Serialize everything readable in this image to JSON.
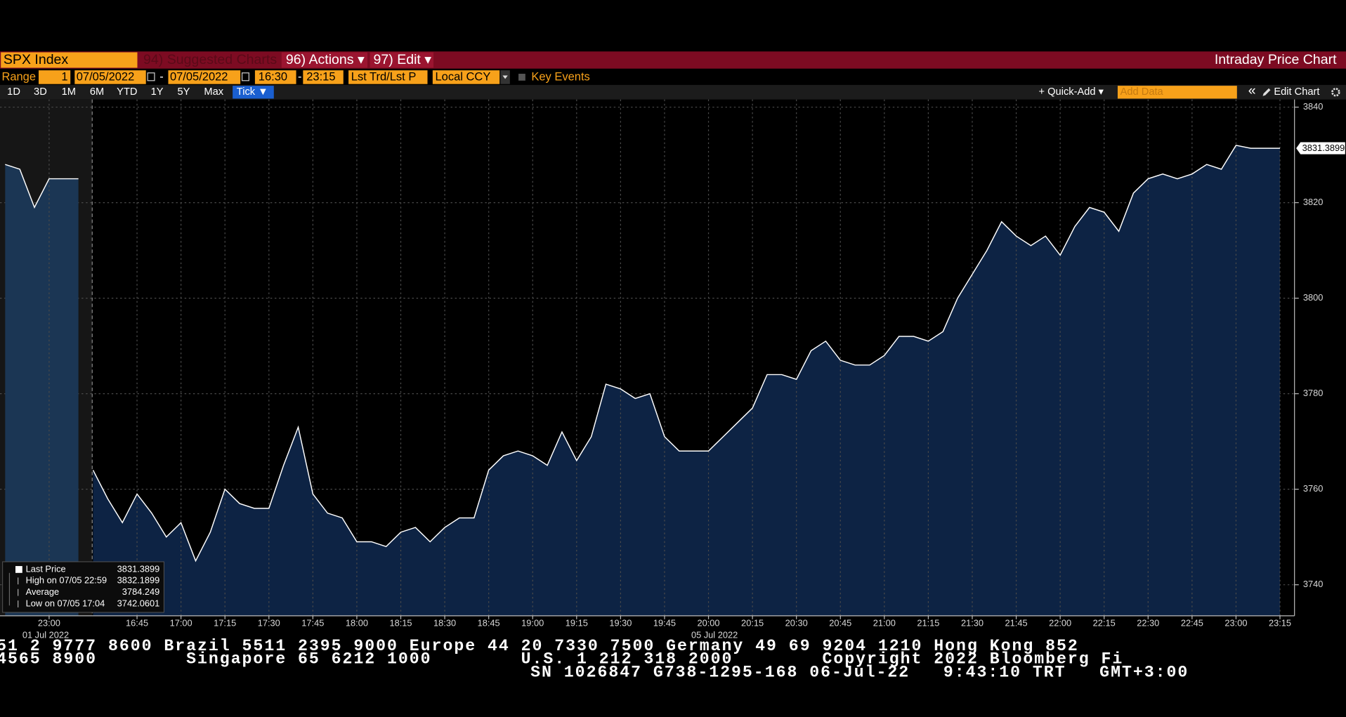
{
  "toolbar": {
    "security": "SPX Index",
    "suggested": "94) Suggested Charts",
    "actions": "96) Actions ▾",
    "edit": "97) Edit ▾",
    "title": "Intraday Price Chart"
  },
  "range_bar": {
    "label": "Range",
    "count": "1",
    "start_date": "07/05/2022",
    "dash1": "-",
    "end_date": "07/05/2022",
    "start_time": "16:30",
    "dash2": "-",
    "end_time": "23:15",
    "field": "Lst Trd/Lst P",
    "currency": "Local CCY",
    "key_events": "Key Events"
  },
  "periods": [
    "1D",
    "3D",
    "1M",
    "6M",
    "YTD",
    "1Y",
    "5Y",
    "Max",
    "Tick ▼"
  ],
  "tools": {
    "quick_add": "+ Quick-Add ▾",
    "add_data": "Add Data",
    "collapse": "«",
    "edit_chart": "Edit Chart"
  },
  "chart_data": {
    "type": "line",
    "color": "#ffffff",
    "fill": "#0d2344",
    "grid": true,
    "segments": [
      {
        "date": "01 Jul 2022",
        "x": [
          "22:45",
          "22:50",
          "22:55",
          "23:00",
          "23:05",
          "23:10"
        ],
        "values": [
          3828,
          3827,
          3819,
          3825,
          3825,
          3825
        ],
        "xticks": [
          "23:00"
        ]
      },
      {
        "date": "05 Jul 2022",
        "x": [
          "16:30",
          "16:35",
          "16:40",
          "16:45",
          "16:50",
          "16:55",
          "17:00",
          "17:05",
          "17:10",
          "17:15",
          "17:20",
          "17:25",
          "17:30",
          "17:35",
          "17:40",
          "17:45",
          "17:50",
          "17:55",
          "18:00",
          "18:05",
          "18:10",
          "18:15",
          "18:20",
          "18:25",
          "18:30",
          "18:35",
          "18:40",
          "18:45",
          "18:50",
          "18:55",
          "19:00",
          "19:05",
          "19:10",
          "19:15",
          "19:20",
          "19:25",
          "19:30",
          "19:35",
          "19:40",
          "19:45",
          "19:50",
          "19:55",
          "20:00",
          "20:05",
          "20:10",
          "20:15",
          "20:20",
          "20:25",
          "20:30",
          "20:35",
          "20:40",
          "20:45",
          "20:50",
          "20:55",
          "21:00",
          "21:05",
          "21:10",
          "21:15",
          "21:20",
          "21:25",
          "21:30",
          "21:35",
          "21:40",
          "21:45",
          "21:50",
          "21:55",
          "22:00",
          "22:05",
          "22:10",
          "22:15",
          "22:20",
          "22:25",
          "22:30",
          "22:35",
          "22:40",
          "22:45",
          "22:50",
          "22:55",
          "23:00",
          "23:05",
          "23:10",
          "23:15"
        ],
        "values": [
          3764,
          3758,
          3753,
          3759,
          3755,
          3750,
          3753,
          3745,
          3751,
          3760,
          3757,
          3756,
          3756,
          3765,
          3773,
          3759,
          3755,
          3754,
          3749,
          3749,
          3748,
          3751,
          3752,
          3749,
          3752,
          3754,
          3754,
          3764,
          3767,
          3768,
          3767,
          3765,
          3772,
          3766,
          3771,
          3782,
          3781,
          3779,
          3780,
          3771,
          3768,
          3768,
          3768,
          3771,
          3774,
          3777,
          3784,
          3784,
          3783,
          3789,
          3791,
          3787,
          3786,
          3786,
          3788,
          3792,
          3792,
          3791,
          3793,
          3800,
          3805,
          3810,
          3816,
          3813,
          3811,
          3813,
          3809,
          3815,
          3819,
          3818,
          3814,
          3822,
          3825,
          3826,
          3825,
          3826,
          3828,
          3827,
          3832,
          3831.39,
          3831.39,
          3831.39
        ],
        "xticks": [
          "16:45",
          "17:00",
          "17:15",
          "17:30",
          "17:45",
          "18:00",
          "18:15",
          "18:30",
          "18:45",
          "19:00",
          "19:15",
          "19:30",
          "19:45",
          "20:00",
          "20:15",
          "20:30",
          "20:45",
          "21:00",
          "21:15",
          "21:30",
          "21:45",
          "22:00",
          "22:15",
          "22:30",
          "22:45",
          "23:00",
          "23:15"
        ]
      }
    ],
    "ylim": [
      3733.5,
      3841.6
    ],
    "yticks": [
      3740,
      3760,
      3780,
      3800,
      3820,
      3840
    ],
    "last_price_label": "3831.3899"
  },
  "legend": [
    {
      "label": "Last Price",
      "value": "3831.3899"
    },
    {
      "label": "High on 07/05 22:59",
      "value": "3832.1899"
    },
    {
      "label": "Average",
      "value": "3784.249"
    },
    {
      "label": "Low on 07/05 17:04",
      "value": "3742.0601"
    }
  ],
  "ticker": [
    "51 2 9777 8600 Brazil 5511 2395 9000 Europe 44 20 7330 7500 Germany 49 69 9204 1210 Hong Kong 852",
    "4565 8900        Singapore 65 6212 1000        U.S. 1 212 318 2000        Copyright 2022 Bloomberg Fi",
    "SN 1026847 G738-1295-168 06-Jul-22   9:43:10 TRT   GMT+3:00"
  ]
}
